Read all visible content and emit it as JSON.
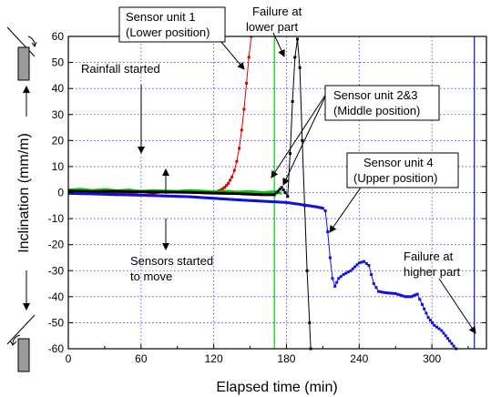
{
  "chart_data": {
    "type": "line",
    "xlabel": "Elapsed time (min)",
    "ylabel": "Inclination (mm/m)",
    "xlim": [
      0,
      345
    ],
    "ylim": [
      -60,
      60
    ],
    "xticks": [
      0,
      60,
      120,
      180,
      240,
      300
    ],
    "yticks": [
      -60,
      -50,
      -40,
      -30,
      -20,
      -10,
      0,
      10,
      20,
      30,
      40,
      50,
      60
    ],
    "grid": true,
    "grid_style": "dotted",
    "series": [
      {
        "name": "Sensor unit 1 (Lower position)",
        "color": "#e00000",
        "points": [
          [
            0,
            -0.2
          ],
          [
            10,
            0.3
          ],
          [
            20,
            -0.5
          ],
          [
            30,
            -0.4
          ],
          [
            40,
            0.2
          ],
          [
            50,
            -0.3
          ],
          [
            60,
            0.4
          ],
          [
            70,
            -0.2
          ],
          [
            80,
            0.5
          ],
          [
            90,
            0.3
          ],
          [
            100,
            0.2
          ],
          [
            110,
            0.0
          ],
          [
            118,
            -0.2
          ],
          [
            122,
            0.3
          ],
          [
            126,
            1.0
          ],
          [
            129,
            2.0
          ],
          [
            132,
            3.5
          ],
          [
            135,
            6.0
          ],
          [
            137,
            8.5
          ],
          [
            139,
            12.0
          ],
          [
            141,
            17.0
          ],
          [
            143,
            24.0
          ],
          [
            145,
            32.0
          ],
          [
            147,
            42.0
          ],
          [
            149,
            52.0
          ],
          [
            151,
            60.0
          ]
        ]
      },
      {
        "name": "Sensor unit 2",
        "color": "#00cc00",
        "points": [
          [
            0,
            1.0
          ],
          [
            10,
            1.3
          ],
          [
            20,
            0.8
          ],
          [
            30,
            1.2
          ],
          [
            40,
            0.7
          ],
          [
            50,
            1.0
          ],
          [
            60,
            0.5
          ],
          [
            70,
            0.8
          ],
          [
            80,
            0.6
          ],
          [
            90,
            0.5
          ],
          [
            100,
            0.8
          ],
          [
            110,
            0.6
          ],
          [
            120,
            0.3
          ],
          [
            130,
            0.5
          ],
          [
            140,
            0.2
          ],
          [
            150,
            0.4
          ],
          [
            160,
            0.0
          ],
          [
            170,
            0.3
          ],
          [
            175,
            -0.2
          ]
        ]
      },
      {
        "name": "Sensor unit 3",
        "color": "#000000",
        "points": [
          [
            0,
            0.6
          ],
          [
            20,
            0.4
          ],
          [
            40,
            0.5
          ],
          [
            60,
            0.3
          ],
          [
            80,
            0.2
          ],
          [
            100,
            0.1
          ],
          [
            120,
            -0.2
          ],
          [
            140,
            -0.4
          ],
          [
            160,
            -0.8
          ],
          [
            170,
            -0.8
          ],
          [
            173,
            0.5
          ],
          [
            176,
            2.0
          ],
          [
            179,
            0.0
          ],
          [
            181,
            -1.5
          ],
          [
            183,
            15.0
          ],
          [
            185,
            35.0
          ],
          [
            187,
            52.0
          ],
          [
            189,
            59.0
          ],
          [
            191,
            48.0
          ],
          [
            193,
            20.0
          ],
          [
            195,
            -5.0
          ],
          [
            197,
            -30.0
          ],
          [
            199,
            -50.0
          ],
          [
            200,
            -60.0
          ]
        ]
      },
      {
        "name": "Sensor unit 4 (Upper position)",
        "color": "#1010dd",
        "points": [
          [
            0,
            -0.3
          ],
          [
            20,
            -0.5
          ],
          [
            40,
            -0.8
          ],
          [
            60,
            -1.0
          ],
          [
            80,
            -1.3
          ],
          [
            100,
            -1.6
          ],
          [
            120,
            -2.2
          ],
          [
            140,
            -2.8
          ],
          [
            160,
            -3.3
          ],
          [
            180,
            -3.8
          ],
          [
            195,
            -4.8
          ],
          [
            205,
            -5.5
          ],
          [
            210,
            -6.0
          ],
          [
            212,
            -7.0
          ],
          [
            214,
            -15.0
          ],
          [
            216,
            -25.0
          ],
          [
            218,
            -33.0
          ],
          [
            220,
            -36.0
          ],
          [
            223,
            -33.0
          ],
          [
            227,
            -31.5
          ],
          [
            233,
            -30.0
          ],
          [
            240,
            -27.0
          ],
          [
            244,
            -26.5
          ],
          [
            248,
            -28.0
          ],
          [
            252,
            -35.0
          ],
          [
            256,
            -38.0
          ],
          [
            262,
            -38.5
          ],
          [
            270,
            -38.8
          ],
          [
            278,
            -40.0
          ],
          [
            283,
            -40.0
          ],
          [
            288,
            -39.0
          ],
          [
            292,
            -43.0
          ],
          [
            297,
            -48.0
          ],
          [
            302,
            -51.0
          ],
          [
            308,
            -53.0
          ],
          [
            313,
            -56.0
          ],
          [
            318,
            -59.0
          ],
          [
            320,
            -60.0
          ]
        ]
      }
    ],
    "vlines": [
      {
        "x": 170,
        "color": "#00cc00"
      },
      {
        "x": 335,
        "color": "#1010dd"
      }
    ],
    "annotations": [
      {
        "id": "sensor1",
        "lines": [
          "Sensor unit 1",
          "(Lower position)"
        ],
        "boxed": true
      },
      {
        "id": "failure-lower",
        "lines": [
          "Failure at",
          "lower part"
        ],
        "boxed": false
      },
      {
        "id": "rainfall",
        "lines": [
          "Rainfall started"
        ],
        "boxed": false
      },
      {
        "id": "sensor23",
        "lines": [
          "Sensor unit 2&3",
          "(Middle position)"
        ],
        "boxed": true
      },
      {
        "id": "sensor4",
        "lines": [
          "Sensor unit 4",
          "(Upper position)"
        ],
        "boxed": true
      },
      {
        "id": "sensors-move",
        "lines": [
          "Sensors started",
          "to move"
        ],
        "boxed": false
      },
      {
        "id": "failure-higher",
        "lines": [
          "Failure at",
          "higher part"
        ],
        "boxed": false
      }
    ]
  }
}
